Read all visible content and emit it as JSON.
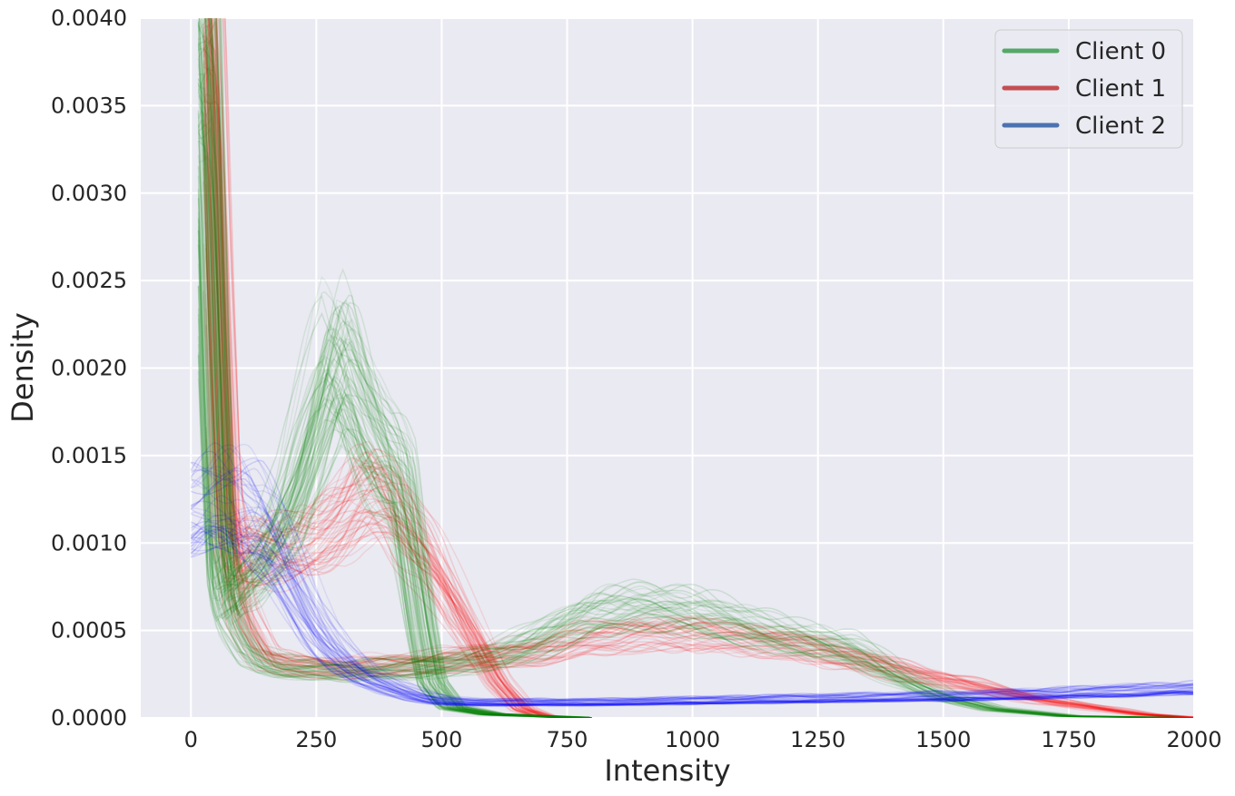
{
  "chart_data": {
    "type": "line",
    "title": "",
    "xlabel": "Intensity",
    "ylabel": "Density",
    "xlim": [
      -100,
      2000
    ],
    "ylim": [
      0,
      0.004
    ],
    "xticks": [
      0,
      250,
      500,
      750,
      1000,
      1250,
      1500,
      1750,
      2000
    ],
    "xtick_labels": [
      "0",
      "250",
      "500",
      "750",
      "1000",
      "1250",
      "1500",
      "1750",
      "2000"
    ],
    "yticks": [
      0,
      0.0005,
      0.001,
      0.0015,
      0.002,
      0.0025,
      0.003,
      0.0035,
      0.004
    ],
    "ytick_labels": [
      "0.0000",
      "0.0005",
      "0.0010",
      "0.0015",
      "0.0020",
      "0.0025",
      "0.0030",
      "0.0035",
      "0.0040"
    ],
    "grid": true,
    "legend_position": "top-right",
    "background_color": "#EAEAF2",
    "grid_color": "#FFFFFF",
    "series": [
      {
        "name": "Client 0",
        "legend_color": "#55A868",
        "line_color": "#008000",
        "profiles": [
          {
            "x": [
              15,
              30,
              45,
              60,
              75,
              90,
              120,
              160,
              200,
              240,
              270,
              290,
              310,
              340,
              370,
              400,
              420,
              440,
              460,
              480,
              520,
              600,
              700,
              800
            ],
            "y": [
              0.0042,
              0.0035,
              0.002,
              0.0009,
              0.0007,
              0.00075,
              0.0008,
              0.00095,
              0.0012,
              0.0016,
              0.0019,
              0.00205,
              0.00195,
              0.0017,
              0.0015,
              0.0014,
              0.0013,
              0.0009,
              0.0005,
              0.0002,
              6e-05,
              2e-05,
              1e-05,
              0.0
            ]
          },
          {
            "x": [
              15,
              30,
              45,
              60,
              75,
              90,
              120,
              160,
              200,
              300,
              400,
              500,
              600,
              700,
              800,
              900,
              1000,
              1100,
              1200,
              1300,
              1400,
              1500,
              1600,
              1750,
              2000
            ],
            "y": [
              0.0042,
              0.0035,
              0.002,
              0.0008,
              0.0006,
              0.0005,
              0.00035,
              0.0003,
              0.00028,
              0.00027,
              0.00028,
              0.0003,
              0.00035,
              0.00045,
              0.0006,
              0.00063,
              0.0006,
              0.00052,
              0.00045,
              0.0004,
              0.00025,
              0.00012,
              5e-05,
              1e-05,
              0.0
            ]
          }
        ]
      },
      {
        "name": "Client 1",
        "legend_color": "#C44E52",
        "line_color": "#FF0000",
        "profiles": [
          {
            "x": [
              25,
              40,
              55,
              70,
              90,
              120,
              160,
              200,
              250,
              300,
              340,
              370,
              400,
              430,
              470,
              510,
              560,
              610,
              660,
              700,
              750,
              800
            ],
            "y": [
              0.0042,
              0.0035,
              0.0022,
              0.0011,
              0.0009,
              0.00092,
              0.00095,
              0.00095,
              0.001,
              0.0011,
              0.00125,
              0.00128,
              0.0012,
              0.00105,
              0.0009,
              0.0007,
              0.00045,
              0.0002,
              5e-05,
              1e-05,
              0.0,
              0.0
            ]
          },
          {
            "x": [
              30,
              50,
              70,
              100,
              150,
              200,
              300,
              400,
              500,
              600,
              700,
              800,
              900,
              1000,
              1100,
              1200,
              1300,
              1400,
              1500,
              1600,
              1700,
              1800,
              1900,
              2000
            ],
            "y": [
              0.0042,
              0.0025,
              0.0012,
              0.0006,
              0.00035,
              0.0003,
              0.00028,
              0.0003,
              0.00032,
              0.00035,
              0.00038,
              0.00045,
              0.00048,
              0.00048,
              0.00045,
              0.00042,
              0.00035,
              0.00028,
              0.00022,
              0.00016,
              0.0001,
              6e-05,
              2e-05,
              0.0
            ]
          }
        ]
      },
      {
        "name": "Client 2",
        "legend_color": "#4C72B0",
        "line_color": "#0000FF",
        "profiles": [
          {
            "x": [
              0,
              30,
              60,
              90,
              120,
              150,
              180,
              210,
              240,
              270,
              300,
              350,
              400,
              450,
              500,
              550,
              600,
              700,
              800,
              1000,
              1200,
              1400,
              1600,
              1800,
              2000
            ],
            "y": [
              0.00118,
              0.00122,
              0.00125,
              0.00125,
              0.0012,
              0.00108,
              0.00092,
              0.00075,
              0.00058,
              0.00045,
              0.00035,
              0.00024,
              0.00018,
              0.00013,
              0.0001,
              9e-05,
              9e-05,
              9e-05,
              9e-05,
              0.0001,
              0.00011,
              0.00012,
              0.00013,
              0.00015,
              0.00017
            ]
          }
        ]
      }
    ]
  }
}
